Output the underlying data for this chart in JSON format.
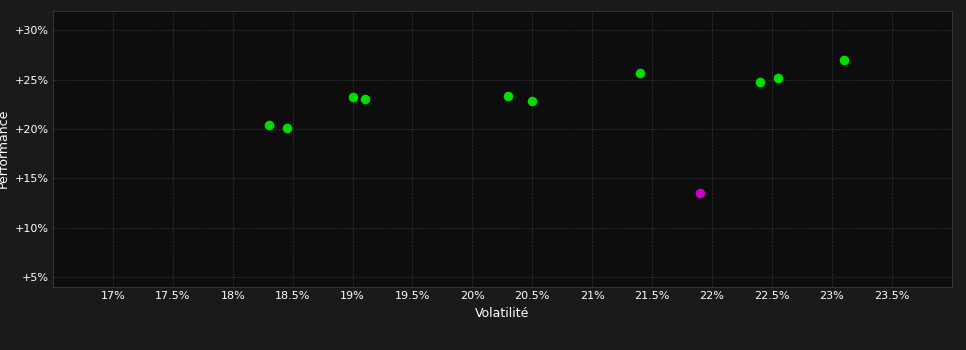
{
  "background_color": "#1a1a1a",
  "plot_bg_color": "#0d0d0d",
  "grid_color": "#333333",
  "text_color": "#ffffff",
  "xlabel": "Volatilité",
  "ylabel": "Performance",
  "xlim": [
    0.165,
    0.24
  ],
  "ylim": [
    0.04,
    0.32
  ],
  "xtick_values": [
    0.17,
    0.175,
    0.18,
    0.185,
    0.19,
    0.195,
    0.2,
    0.205,
    0.21,
    0.215,
    0.22,
    0.225,
    0.23,
    0.235
  ],
  "ytick_values": [
    0.05,
    0.1,
    0.15,
    0.2,
    0.25,
    0.3
  ],
  "green_points": [
    [
      0.183,
      0.204
    ],
    [
      0.1845,
      0.201
    ],
    [
      0.19,
      0.232
    ],
    [
      0.191,
      0.23
    ],
    [
      0.203,
      0.233
    ],
    [
      0.205,
      0.228
    ],
    [
      0.214,
      0.257
    ],
    [
      0.224,
      0.248
    ],
    [
      0.2255,
      0.252
    ],
    [
      0.231,
      0.27
    ]
  ],
  "magenta_points": [
    [
      0.219,
      0.135
    ]
  ],
  "green_color": "#00dd00",
  "magenta_color": "#cc00cc",
  "marker_size": 48
}
